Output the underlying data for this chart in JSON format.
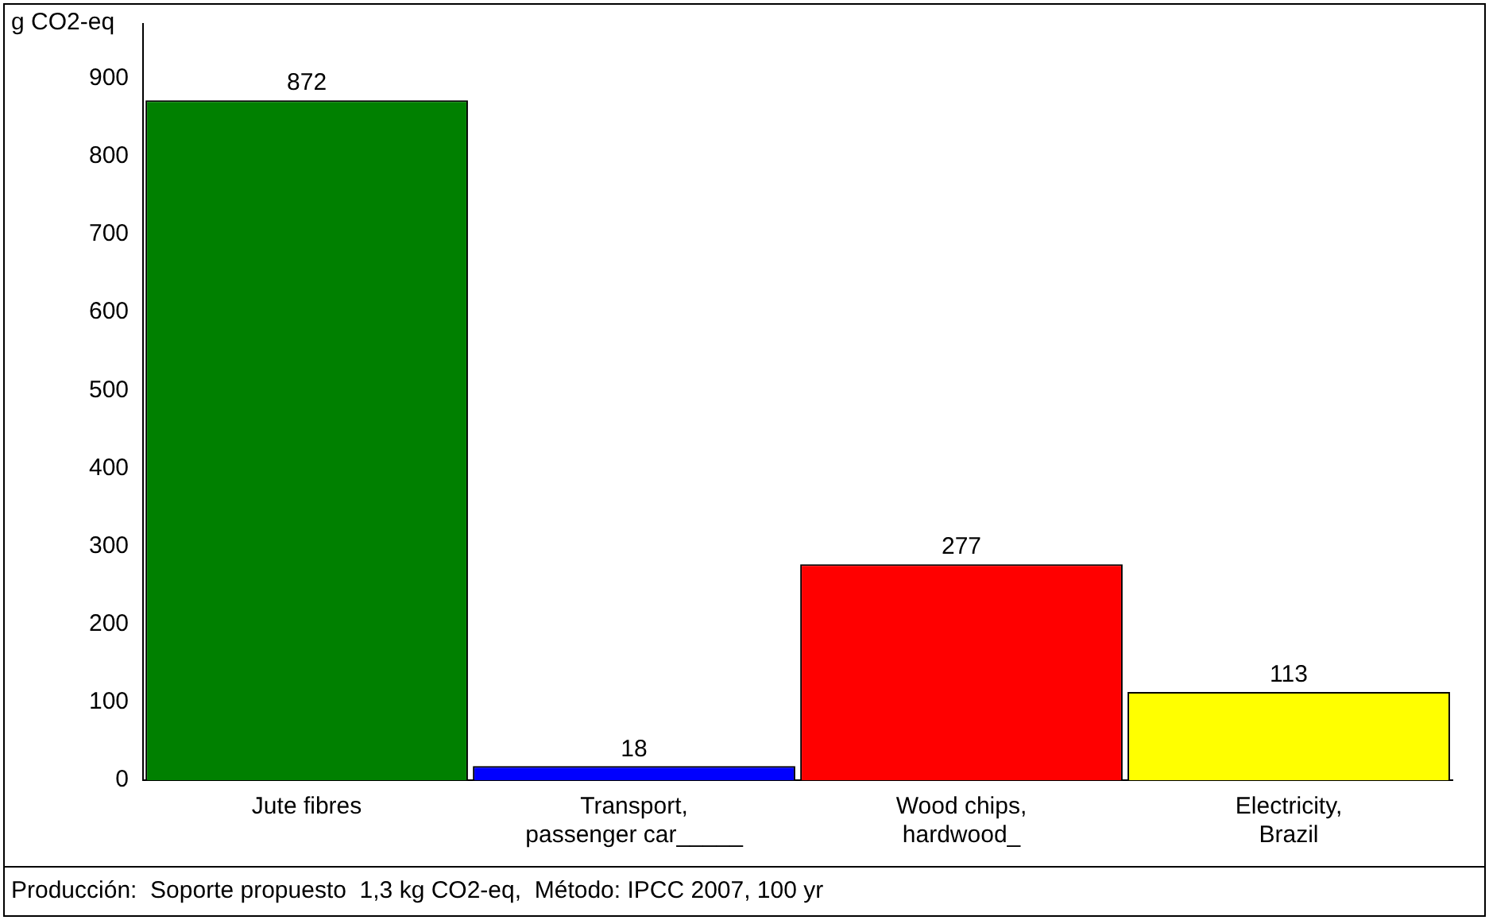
{
  "chart_data": {
    "type": "bar",
    "ylabel": "g CO2-eq",
    "categories": [
      "Jute fibres",
      "Transport, passenger car_____",
      "Wood chips, hardwood_",
      "Electricity, Brazil"
    ],
    "values": [
      872,
      18,
      277,
      113
    ],
    "colors": [
      "#008000",
      "#0000ff",
      "#ff0000",
      "#ffff00"
    ],
    "ylim": [
      0,
      970
    ],
    "yticks": [
      0,
      100,
      200,
      300,
      400,
      500,
      600,
      700,
      800,
      900
    ],
    "grid": false,
    "legend": false,
    "data_labels": true,
    "annotations": [
      "Producción:  Soporte propuesto  1,3 kg CO2-eq,  Método: IPCC 2007, 100 yr"
    ]
  }
}
